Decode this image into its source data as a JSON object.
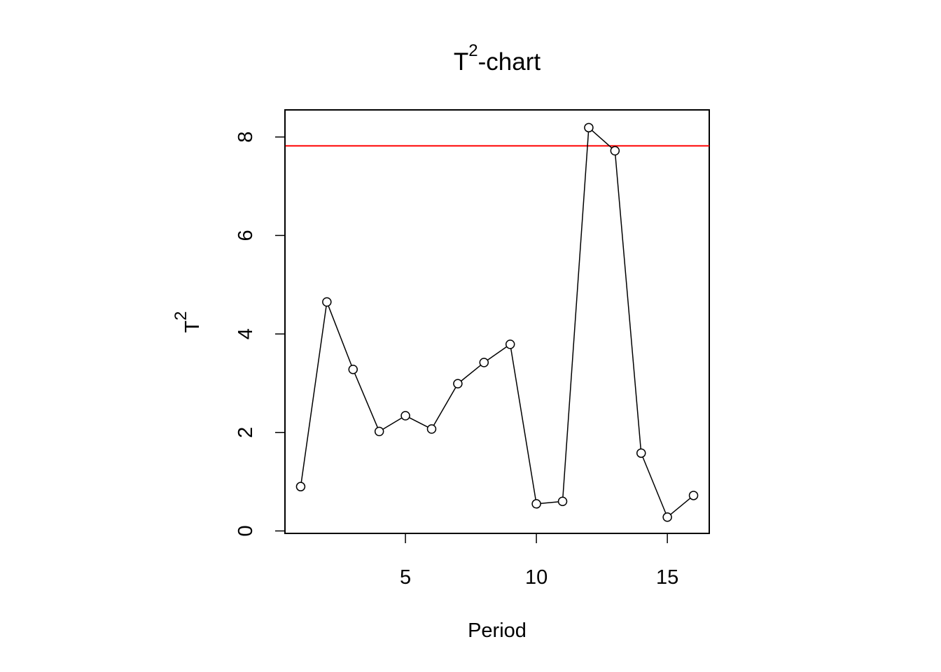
{
  "chart_data": {
    "type": "line",
    "title": {
      "base": "T",
      "sup": "2",
      "rest": "-chart"
    },
    "xlabel": "Period",
    "ylabel": {
      "base": "T",
      "sup": "2"
    },
    "x": [
      1,
      2,
      3,
      4,
      5,
      6,
      7,
      8,
      9,
      10,
      11,
      12,
      13,
      14,
      15,
      16
    ],
    "series": [
      {
        "values": [
          0.9,
          4.65,
          3.28,
          2.02,
          2.34,
          2.07,
          2.99,
          3.42,
          3.79,
          0.55,
          0.6,
          8.19,
          7.72,
          1.58,
          0.28,
          0.72
        ],
        "color": "#000000",
        "marker": "open-circle"
      }
    ],
    "control_limit": {
      "value": 7.82,
      "color": "#ff0000"
    },
    "xticks": [
      5,
      10,
      15
    ],
    "yticks": [
      0,
      2,
      4,
      6,
      8
    ],
    "xlim": [
      0.4,
      16.6
    ],
    "ylim": [
      -0.05,
      8.55
    ],
    "grid": false,
    "legend": "none"
  }
}
